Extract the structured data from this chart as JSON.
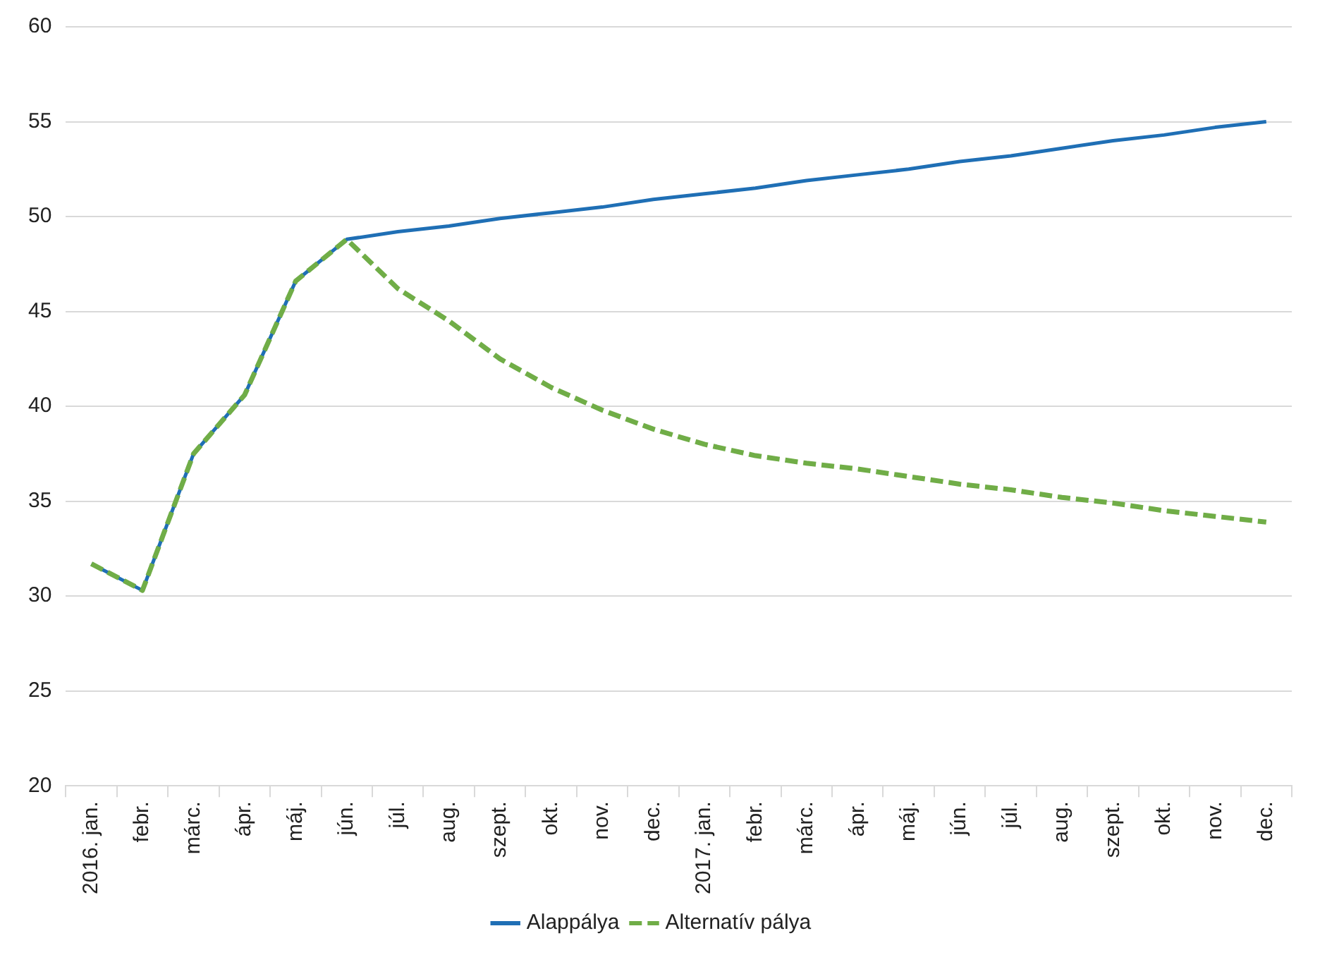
{
  "chart_data": {
    "type": "line",
    "categories": [
      "2016. jan.",
      "febr.",
      "márc.",
      "ápr.",
      "máj.",
      "jún.",
      "júl.",
      "aug.",
      "szept.",
      "okt.",
      "nov.",
      "dec.",
      "2017. jan.",
      "febr.",
      "márc.",
      "ápr.",
      "máj.",
      "jún.",
      "júl.",
      "aug.",
      "szept.",
      "okt.",
      "nov.",
      "dec."
    ],
    "series": [
      {
        "name": "Alappálya",
        "color": "#1f6fb5",
        "line_style": "solid",
        "values": [
          31.7,
          30.3,
          37.5,
          40.6,
          46.6,
          48.8,
          49.2,
          49.5,
          49.9,
          50.2,
          50.5,
          50.9,
          51.2,
          51.5,
          51.9,
          52.2,
          52.5,
          52.9,
          53.2,
          53.6,
          54.0,
          54.3,
          54.7,
          55.0
        ]
      },
      {
        "name": "Alternatív pálya",
        "color": "#70ad47",
        "line_style": "dashed",
        "values": [
          31.7,
          30.3,
          37.5,
          40.6,
          46.6,
          48.8,
          46.2,
          44.5,
          42.5,
          41.0,
          39.8,
          38.8,
          38.0,
          37.4,
          37.0,
          36.7,
          36.3,
          35.9,
          35.6,
          35.2,
          34.9,
          34.5,
          34.2,
          33.9
        ]
      }
    ],
    "ylim": [
      20,
      60
    ],
    "yticks": [
      20,
      25,
      30,
      35,
      40,
      45,
      50,
      55,
      60
    ],
    "grid": "y",
    "legend": "bottom",
    "marker": "none"
  }
}
